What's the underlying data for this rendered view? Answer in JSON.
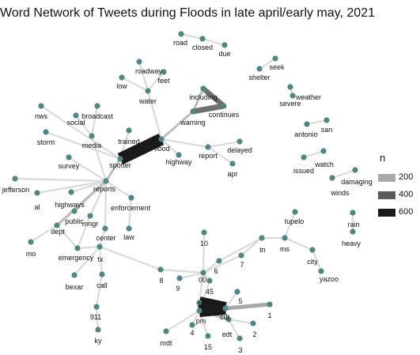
{
  "title": "Word Network of Tweets during Floods in late april/early may, 2021",
  "legend": {
    "title": "n",
    "items": [
      {
        "label": "200",
        "color": "#a9a9a9"
      },
      {
        "label": "400",
        "color": "#5c5c5c"
      },
      {
        "label": "600",
        "color": "#1a1a1a"
      }
    ]
  },
  "colors": {
    "node": "#4e8785",
    "edge_light": "#d9d9d9",
    "edge_dark": "#1a1a1a"
  },
  "nodes": [
    {
      "id": "road",
      "label": "road"
    },
    {
      "id": "closed",
      "label": "closed"
    },
    {
      "id": "due",
      "label": "due"
    },
    {
      "id": "seek",
      "label": "seek"
    },
    {
      "id": "shelter",
      "label": "shelter"
    },
    {
      "id": "roadway",
      "label": "roadway"
    },
    {
      "id": "feet",
      "label": "feet"
    },
    {
      "id": "low",
      "label": "low"
    },
    {
      "id": "water",
      "label": "water"
    },
    {
      "id": "weather",
      "label": "weather"
    },
    {
      "id": "severe",
      "label": "severe"
    },
    {
      "id": "including",
      "label": "including"
    },
    {
      "id": "continues",
      "label": "continues"
    },
    {
      "id": "warning",
      "label": "warning"
    },
    {
      "id": "nws",
      "label": "nws"
    },
    {
      "id": "broadcast",
      "label": "broadcast"
    },
    {
      "id": "social",
      "label": "social"
    },
    {
      "id": "san",
      "label": "san"
    },
    {
      "id": "antonio",
      "label": "antonio"
    },
    {
      "id": "storm",
      "label": "storm"
    },
    {
      "id": "media",
      "label": "media"
    },
    {
      "id": "trained",
      "label": "trained"
    },
    {
      "id": "flood",
      "label": "flood"
    },
    {
      "id": "delayed",
      "label": "delayed"
    },
    {
      "id": "highway",
      "label": "highway"
    },
    {
      "id": "report",
      "label": "report"
    },
    {
      "id": "survey",
      "label": "survey"
    },
    {
      "id": "spotter",
      "label": "spotter"
    },
    {
      "id": "apr",
      "label": "apr"
    },
    {
      "id": "watch",
      "label": "watch"
    },
    {
      "id": "issued",
      "label": "issued"
    },
    {
      "id": "damaging",
      "label": "damaging"
    },
    {
      "id": "winds",
      "label": "winds"
    },
    {
      "id": "jefferson",
      "label": "jefferson"
    },
    {
      "id": "reports",
      "label": "reports"
    },
    {
      "id": "al",
      "label": "al"
    },
    {
      "id": "highways",
      "label": "highways"
    },
    {
      "id": "enforcement",
      "label": "enforcement"
    },
    {
      "id": "public",
      "label": "public"
    },
    {
      "id": "mngr",
      "label": "mngr"
    },
    {
      "id": "tupelo",
      "label": "tupelo"
    },
    {
      "id": "rain",
      "label": "rain"
    },
    {
      "id": "heavy",
      "label": "heavy"
    },
    {
      "id": "dept",
      "label": "dept"
    },
    {
      "id": "center",
      "label": "center"
    },
    {
      "id": "law",
      "label": "law"
    },
    {
      "id": "mo",
      "label": "mo"
    },
    {
      "id": "emergency",
      "label": "emergency"
    },
    {
      "id": "tx",
      "label": "tx"
    },
    {
      "id": "n10",
      "label": "10"
    },
    {
      "id": "tn",
      "label": "tn"
    },
    {
      "id": "ms",
      "label": "ms"
    },
    {
      "id": "city",
      "label": "city"
    },
    {
      "id": "n7",
      "label": "7"
    },
    {
      "id": "n6",
      "label": "6"
    },
    {
      "id": "bexar",
      "label": "bexar"
    },
    {
      "id": "call",
      "label": "call"
    },
    {
      "id": "n8",
      "label": "8"
    },
    {
      "id": "n9",
      "label": "9"
    },
    {
      "id": "n00",
      "label": "00"
    },
    {
      "id": "yazoo",
      "label": "yazoo"
    },
    {
      "id": "n45",
      "label": "45"
    },
    {
      "id": "n5",
      "label": "5"
    },
    {
      "id": "n30",
      "label": "30"
    },
    {
      "id": "cdt",
      "label": "cdt"
    },
    {
      "id": "n1",
      "label": "1"
    },
    {
      "id": "n911",
      "label": "911"
    },
    {
      "id": "pm",
      "label": "pm"
    },
    {
      "id": "n4",
      "label": "4"
    },
    {
      "id": "edt",
      "label": "edt"
    },
    {
      "id": "n2",
      "label": "2"
    },
    {
      "id": "mdt",
      "label": "mdt"
    },
    {
      "id": "n15",
      "label": "15"
    },
    {
      "id": "n3",
      "label": "3"
    },
    {
      "id": "ky",
      "label": "ky"
    }
  ],
  "edges": [
    {
      "from": "road",
      "to": "closed",
      "n": 40
    },
    {
      "from": "closed",
      "to": "due",
      "n": 40
    },
    {
      "from": "seek",
      "to": "shelter",
      "n": 30
    },
    {
      "from": "roadway",
      "to": "water",
      "n": 30
    },
    {
      "from": "feet",
      "to": "water",
      "n": 30
    },
    {
      "from": "low",
      "to": "water",
      "n": 30
    },
    {
      "from": "water",
      "to": "flood",
      "n": 40
    },
    {
      "from": "weather",
      "to": "severe",
      "n": 30
    },
    {
      "from": "including",
      "to": "warning",
      "n": 120
    },
    {
      "from": "continues",
      "to": "warning",
      "n": 280
    },
    {
      "from": "including",
      "to": "continues",
      "n": 260
    },
    {
      "from": "warning",
      "to": "flood",
      "n": 120
    },
    {
      "from": "san",
      "to": "antonio",
      "n": 40
    },
    {
      "from": "nws",
      "to": "spotter",
      "n": 40
    },
    {
      "from": "broadcast",
      "to": "media",
      "n": 30
    },
    {
      "from": "social",
      "to": "media",
      "n": 30
    },
    {
      "from": "storm",
      "to": "spotter",
      "n": 40
    },
    {
      "from": "media",
      "to": "reports",
      "n": 40
    },
    {
      "from": "trained",
      "to": "spotter",
      "n": 40
    },
    {
      "from": "flood",
      "to": "spotter",
      "n": 620
    },
    {
      "from": "flood",
      "to": "highway",
      "n": 30
    },
    {
      "from": "flood",
      "to": "report",
      "n": 40
    },
    {
      "from": "report",
      "to": "delayed",
      "n": 30
    },
    {
      "from": "report",
      "to": "apr",
      "n": 30
    },
    {
      "from": "survey",
      "to": "reports",
      "n": 30
    },
    {
      "from": "spotter",
      "to": "reports",
      "n": 120
    },
    {
      "from": "watch",
      "to": "issued",
      "n": 30
    },
    {
      "from": "damaging",
      "to": "winds",
      "n": 30
    },
    {
      "from": "jefferson",
      "to": "reports",
      "n": 30
    },
    {
      "from": "al",
      "to": "reports",
      "n": 40
    },
    {
      "from": "highways",
      "to": "reports",
      "n": 40
    },
    {
      "from": "enforcement",
      "to": "reports",
      "n": 30
    },
    {
      "from": "law",
      "to": "enforcement",
      "n": 30
    },
    {
      "from": "public",
      "to": "reports",
      "n": 30
    },
    {
      "from": "mngr",
      "to": "reports",
      "n": 30
    },
    {
      "from": "dept",
      "to": "reports",
      "n": 130
    },
    {
      "from": "center",
      "to": "reports",
      "n": 30
    },
    {
      "from": "mo",
      "to": "dept",
      "n": 30
    },
    {
      "from": "emergency",
      "to": "dept",
      "n": 40
    },
    {
      "from": "emergency",
      "to": "mngr",
      "n": 30
    },
    {
      "from": "tx",
      "to": "center",
      "n": 30
    },
    {
      "from": "tx",
      "to": "emergency",
      "n": 40
    },
    {
      "from": "tx",
      "to": "n8",
      "n": 40
    },
    {
      "from": "bexar",
      "to": "tx",
      "n": 30
    },
    {
      "from": "call",
      "to": "tx",
      "n": 30
    },
    {
      "from": "n911",
      "to": "call",
      "n": 30
    },
    {
      "from": "ky",
      "to": "n911",
      "n": 30
    },
    {
      "from": "rain",
      "to": "heavy",
      "n": 30
    },
    {
      "from": "tupelo",
      "to": "ms",
      "n": 30
    },
    {
      "from": "tn",
      "to": "ms",
      "n": 30
    },
    {
      "from": "ms",
      "to": "city",
      "n": 30
    },
    {
      "from": "city",
      "to": "yazoo",
      "n": 30
    },
    {
      "from": "n7",
      "to": "tn",
      "n": 30
    },
    {
      "from": "n6",
      "to": "tn",
      "n": 30
    },
    {
      "from": "n10",
      "to": "n00",
      "n": 30
    },
    {
      "from": "n8",
      "to": "n00",
      "n": 40
    },
    {
      "from": "n9",
      "to": "n00",
      "n": 40
    },
    {
      "from": "n6",
      "to": "n00",
      "n": 30
    },
    {
      "from": "n7",
      "to": "n00",
      "n": 30
    },
    {
      "from": "n00",
      "to": "n30",
      "n": 60
    },
    {
      "from": "n00",
      "to": "n45",
      "n": 40
    },
    {
      "from": "n45",
      "to": "pm",
      "n": 40
    },
    {
      "from": "n30",
      "to": "cdt",
      "n": 640
    },
    {
      "from": "pm",
      "to": "cdt",
      "n": 640
    },
    {
      "from": "n30",
      "to": "pm",
      "n": 100
    },
    {
      "from": "n1",
      "to": "cdt",
      "n": 200
    },
    {
      "from": "n5",
      "to": "cdt",
      "n": 40
    },
    {
      "from": "n2",
      "to": "edt",
      "n": 40
    },
    {
      "from": "n3",
      "to": "edt",
      "n": 30
    },
    {
      "from": "pm",
      "to": "edt",
      "n": 120
    },
    {
      "from": "n4",
      "to": "pm",
      "n": 40
    },
    {
      "from": "n15",
      "to": "pm",
      "n": 40
    },
    {
      "from": "mdt",
      "to": "pm",
      "n": 30
    }
  ]
}
